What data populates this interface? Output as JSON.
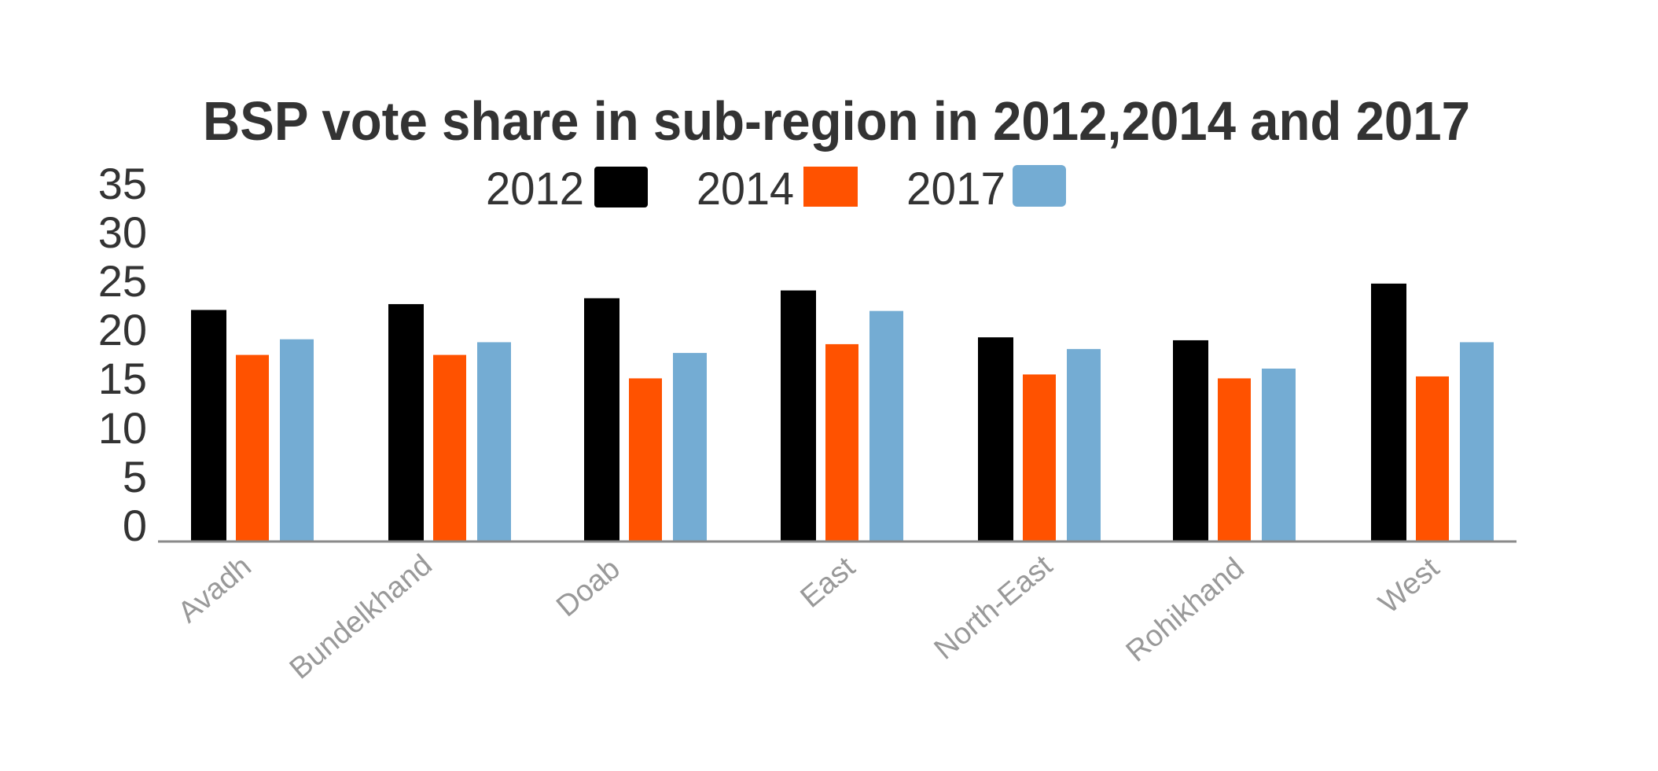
{
  "chart_data": {
    "type": "bar",
    "title": "BSP vote share in sub-region in 2012,2014 and 2017",
    "xlabel": "",
    "ylabel": "",
    "ylim": [
      0,
      35
    ],
    "yticks": [
      "0",
      "5",
      "10",
      "15",
      "20",
      "25",
      "30",
      "35"
    ],
    "grid": false,
    "legend_position": "top",
    "categories": [
      "Avadh",
      "Bundelkhand",
      "Doab",
      "East",
      "North-East",
      "Rohikhand",
      "West"
    ],
    "series": [
      {
        "name": "2012",
        "color": "#000000",
        "values": [
          23.7,
          24.3,
          24.9,
          25.7,
          20.9,
          20.6,
          26.4
        ]
      },
      {
        "name": "2014",
        "color": "#FF5200",
        "values": [
          19.1,
          19.1,
          16.7,
          20.2,
          17.1,
          16.7,
          16.9
        ]
      },
      {
        "name": "2017",
        "color": "#74ACD3",
        "values": [
          20.7,
          20.4,
          19.3,
          23.6,
          19.7,
          17.7,
          20.4
        ]
      }
    ]
  },
  "colors": {
    "title": "#333333",
    "tick_label": "#333333",
    "category_label": "#999999",
    "axis_line": "#8A8A8A",
    "background": "#FFFFFF"
  }
}
